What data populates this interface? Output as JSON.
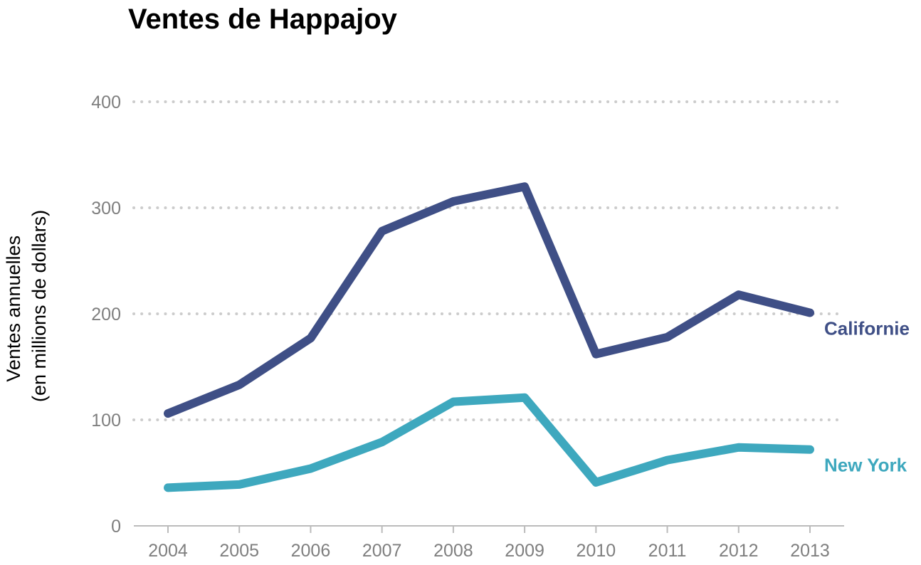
{
  "chart_data": {
    "type": "line",
    "title": "Ventes de Happajoy",
    "ylabel_lines": [
      "Ventes annuelles",
      "(en millions de dollars)"
    ],
    "xlabel": "",
    "x": [
      "2004",
      "2005",
      "2006",
      "2007",
      "2008",
      "2009",
      "2010",
      "2011",
      "2012",
      "2013"
    ],
    "y_ticks": [
      0,
      100,
      200,
      300,
      400
    ],
    "ylim": [
      0,
      400
    ],
    "grid": true,
    "legend": "inline-right",
    "series": [
      {
        "name": "Californie",
        "color": "#3f4f86",
        "values": [
          106,
          133,
          177,
          278,
          306,
          320,
          162,
          178,
          218,
          201
        ]
      },
      {
        "name": "New York",
        "color": "#3ea8be",
        "values": [
          36,
          39,
          54,
          79,
          117,
          121,
          41,
          62,
          74,
          72
        ]
      }
    ]
  }
}
